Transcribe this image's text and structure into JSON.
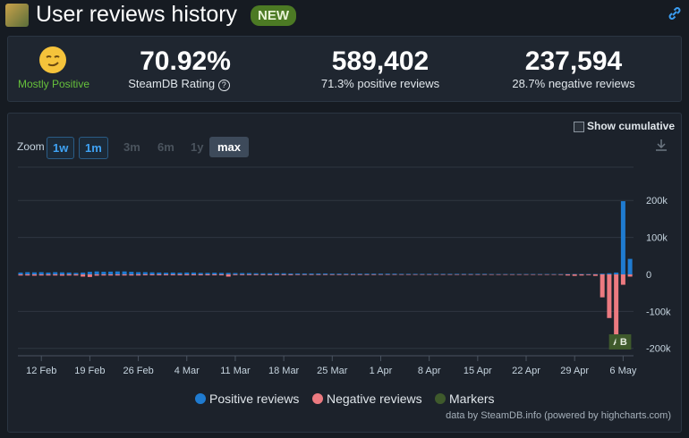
{
  "header": {
    "title": "User reviews history",
    "badge": "NEW"
  },
  "stats": {
    "rating_label": "Mostly Positive",
    "rating": "70.92%",
    "rating_caption": "SteamDB Rating",
    "positive_count": "589,402",
    "positive_caption": "71.3% positive reviews",
    "negative_count": "237,594",
    "negative_caption": "28.7% negative reviews"
  },
  "controls": {
    "show_cumulative": "Show cumulative",
    "zoom_label": "Zoom",
    "zoom_options": [
      "1w",
      "1m",
      "3m",
      "6m",
      "1y",
      "max"
    ]
  },
  "chart_data": {
    "type": "bar",
    "categories": [
      null,
      null,
      null,
      "12 Feb",
      null,
      null,
      null,
      null,
      null,
      null,
      "19 Feb",
      null,
      null,
      null,
      null,
      null,
      null,
      "26 Feb",
      null,
      null,
      null,
      null,
      null,
      null,
      "4 Mar",
      null,
      null,
      null,
      null,
      null,
      null,
      "11 Mar",
      null,
      null,
      null,
      null,
      null,
      null,
      "18 Mar",
      null,
      null,
      null,
      null,
      null,
      null,
      "25 Mar",
      null,
      null,
      null,
      null,
      null,
      null,
      "1 Apr",
      null,
      null,
      null,
      null,
      null,
      null,
      "8 Apr",
      null,
      null,
      null,
      null,
      null,
      null,
      "15 Apr",
      null,
      null,
      null,
      null,
      null,
      null,
      "22 Apr",
      null,
      null,
      null,
      null,
      null,
      null,
      "29 Apr",
      null,
      null,
      null,
      null,
      null,
      null,
      "6 May",
      null
    ],
    "series": [
      {
        "name": "Positive reviews",
        "color": "#1f7bd0",
        "values": [
          5000,
          6000,
          5500,
          6000,
          5000,
          6000,
          5500,
          5000,
          4000,
          5000,
          7000,
          8000,
          7000,
          7500,
          8000,
          8000,
          7000,
          6000,
          6000,
          5500,
          5000,
          4500,
          5000,
          4500,
          5000,
          5000,
          4000,
          4000,
          4500,
          4000,
          4000,
          3500,
          3500,
          3500,
          3000,
          3000,
          3000,
          3000,
          3000,
          2500,
          2500,
          2500,
          2500,
          2500,
          2500,
          2000,
          2000,
          2000,
          2000,
          2000,
          2000,
          2000,
          2000,
          2000,
          2000,
          1500,
          1500,
          1500,
          1500,
          1500,
          1500,
          1500,
          1500,
          1500,
          1500,
          1500,
          1500,
          1500,
          1000,
          1000,
          1000,
          1000,
          1000,
          1000,
          1000,
          1000,
          1000,
          1000,
          1000,
          1000,
          1000,
          1000,
          1000,
          1000,
          2000,
          3000,
          5000,
          198000,
          42000
        ]
      },
      {
        "name": "Negative reviews",
        "color": "#ec7a80",
        "values": [
          -3000,
          -3000,
          -3500,
          -3000,
          -3000,
          -3000,
          -3500,
          -3000,
          -3000,
          -6000,
          -7000,
          -3500,
          -3000,
          -3000,
          -3000,
          -3000,
          -3000,
          -3000,
          -2500,
          -2500,
          -2500,
          -2500,
          -2500,
          -2500,
          -2500,
          -2500,
          -2500,
          -2500,
          -2500,
          -2500,
          -6000,
          -2000,
          -2000,
          -2000,
          -2000,
          -2000,
          -2000,
          -2000,
          -2000,
          -2000,
          -1500,
          -1500,
          -1500,
          -1500,
          -1500,
          -1500,
          -1500,
          -1500,
          -1500,
          -1500,
          -1500,
          -1500,
          -1000,
          -1000,
          -1000,
          -1000,
          -1000,
          -1000,
          -1000,
          -1000,
          -1000,
          -1000,
          -1000,
          -1000,
          -1000,
          -1000,
          -1000,
          -1000,
          -1000,
          -1000,
          -1000,
          -1000,
          -1000,
          -1000,
          -1000,
          -1000,
          -1000,
          -1000,
          -1500,
          -3000,
          -4000,
          -3000,
          -2000,
          -4000,
          -62000,
          -118000,
          -168000,
          -28000,
          -6000
        ]
      }
    ],
    "markers": {
      "name": "Markers",
      "color": "#3f5a2c",
      "labels": [
        null,
        null,
        null,
        null,
        null,
        null,
        null,
        null,
        null,
        null,
        null,
        null,
        null,
        null,
        null,
        null,
        null,
        null,
        null,
        null,
        null,
        null,
        null,
        null,
        null,
        null,
        null,
        null,
        null,
        null,
        null,
        null,
        null,
        null,
        null,
        null,
        null,
        null,
        null,
        null,
        null,
        null,
        null,
        null,
        null,
        null,
        null,
        null,
        null,
        null,
        null,
        null,
        null,
        null,
        null,
        null,
        null,
        null,
        null,
        null,
        null,
        null,
        null,
        null,
        null,
        null,
        null,
        null,
        null,
        null,
        null,
        null,
        null,
        null,
        null,
        null,
        null,
        null,
        null,
        null,
        null,
        null,
        null,
        null,
        null,
        null,
        "A",
        "B",
        null
      ]
    },
    "ylim": [
      -220000,
      290000
    ],
    "yticks": [
      {
        "value": 200000,
        "label": "200k"
      },
      {
        "value": 100000,
        "label": "100k"
      },
      0,
      {
        "value": -100000,
        "label": "-100k"
      },
      {
        "value": -200000,
        "label": "-200k"
      }
    ],
    "grid": true,
    "credits": "data by SteamDB.info (powered by highcharts.com)"
  }
}
